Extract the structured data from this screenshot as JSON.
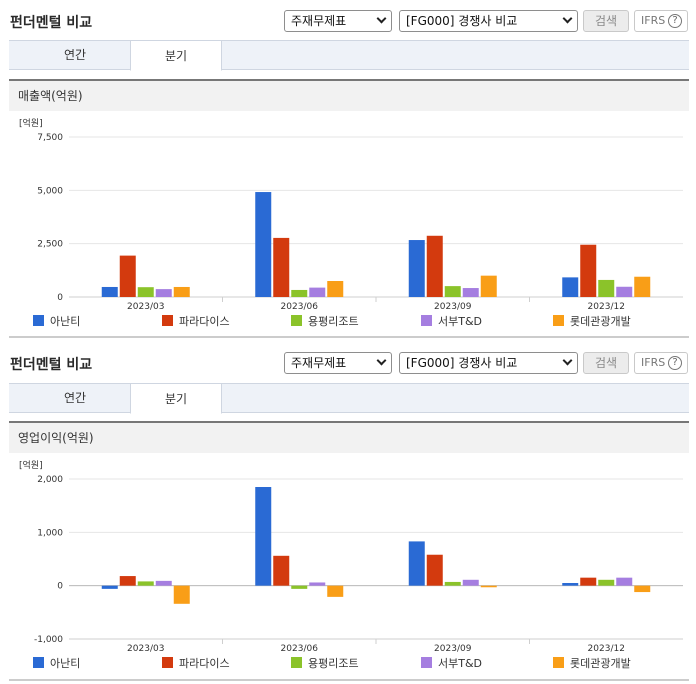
{
  "panel_title": "펀더멘털 비교",
  "controls": {
    "report_select": "주재무제표",
    "compare_select": "[FG000] 경쟁사 비교",
    "search_label": "검색",
    "ifrs_label": "IFRS",
    "help_glyph": "?"
  },
  "tabs": [
    "연간",
    "분기"
  ],
  "active_tab": 1,
  "series_names": [
    "아난티",
    "파라다이스",
    "용평리조트",
    "서부T&D",
    "롯데관광개발"
  ],
  "series_colors": [
    "#2a6ad4",
    "#d33a0e",
    "#8bc32a",
    "#a57ee0",
    "#f99e17"
  ],
  "charts": [
    {
      "section_title": "매출액(억원)",
      "unit_label": "[억원]",
      "chart_data": {
        "type": "bar",
        "categories": [
          "2023/03",
          "2023/06",
          "2023/09",
          "2023/12"
        ],
        "ylim": [
          0,
          7500
        ],
        "yticks": [
          0,
          2500,
          5000,
          7500
        ],
        "ytick_labels": [
          "0",
          "2,500",
          "5,000",
          "7,500"
        ],
        "series": [
          {
            "name": "아난티",
            "values": [
              470,
              4920,
              2670,
              920
            ]
          },
          {
            "name": "파라다이스",
            "values": [
              1940,
              2770,
              2870,
              2450
            ]
          },
          {
            "name": "용평리조트",
            "values": [
              460,
              330,
              510,
              800
            ]
          },
          {
            "name": "서부T&D",
            "values": [
              370,
              440,
              420,
              480
            ]
          },
          {
            "name": "롯데관광개발",
            "values": [
              470,
              750,
              1000,
              950
            ]
          }
        ],
        "legend": "bottom"
      }
    },
    {
      "section_title": "영업이익(억원)",
      "unit_label": "[억원]",
      "chart_data": {
        "type": "bar",
        "categories": [
          "2023/03",
          "2023/06",
          "2023/09",
          "2023/12"
        ],
        "ylim": [
          -1000,
          2000
        ],
        "yticks": [
          -1000,
          0,
          1000,
          2000
        ],
        "ytick_labels": [
          "-1,000",
          "0",
          "1,000",
          "2,000"
        ],
        "series": [
          {
            "name": "아난티",
            "values": [
              -60,
              1850,
              830,
              50
            ]
          },
          {
            "name": "파라다이스",
            "values": [
              180,
              560,
              580,
              150
            ]
          },
          {
            "name": "용평리조트",
            "values": [
              80,
              -60,
              70,
              110
            ]
          },
          {
            "name": "서부T&D",
            "values": [
              90,
              60,
              110,
              150
            ]
          },
          {
            "name": "롯데관광개발",
            "values": [
              -340,
              -210,
              -30,
              -120
            ]
          }
        ],
        "legend": "bottom"
      }
    }
  ]
}
